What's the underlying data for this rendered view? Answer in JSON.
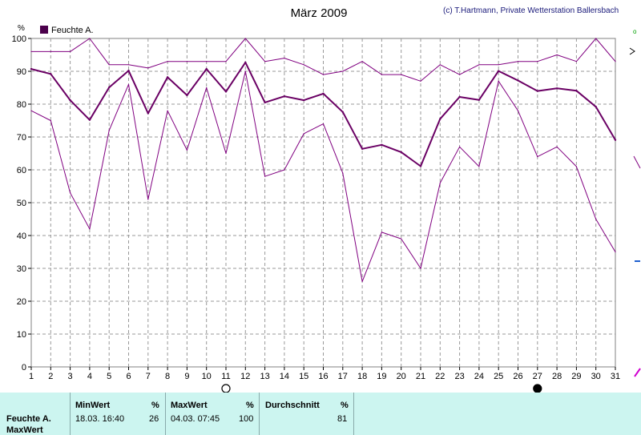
{
  "chart_data": {
    "type": "line",
    "title": "März 2009",
    "credit": "(c) T.Hartmann, Private Wetterstation Ballersbach",
    "ylabel": "%",
    "ylim": [
      0,
      100
    ],
    "yticks": [
      0,
      10,
      20,
      30,
      40,
      50,
      60,
      70,
      80,
      90,
      100
    ],
    "x": [
      1,
      2,
      3,
      4,
      5,
      6,
      7,
      8,
      9,
      10,
      11,
      12,
      13,
      14,
      15,
      16,
      17,
      18,
      19,
      20,
      21,
      22,
      23,
      24,
      25,
      26,
      27,
      28,
      29,
      30,
      31
    ],
    "legend": "Feuchte A.",
    "legend_position": "top-left",
    "grid": true,
    "series": [
      {
        "role": "max",
        "color": "#800080",
        "values": [
          96,
          96,
          96,
          100,
          92,
          92,
          91,
          93,
          93,
          93,
          93,
          100,
          93,
          94,
          92,
          89,
          90,
          93,
          89,
          89,
          87,
          92,
          89,
          92,
          92,
          93,
          93,
          95,
          93,
          100,
          93
        ]
      },
      {
        "role": "mean",
        "color": "#6a0064",
        "values": [
          90.7,
          89.2,
          81.2,
          75.2,
          85.1,
          90.2,
          77.2,
          88.2,
          82.7,
          90.7,
          83.8,
          92.7,
          80.5,
          82.4,
          81.2,
          83.2,
          77.6,
          66.4,
          67.6,
          65.4,
          61.1,
          75.5,
          82.2,
          81.3,
          90.1,
          87.2,
          84,
          84.8,
          84.1,
          79.2,
          69.1
        ]
      },
      {
        "role": "min",
        "color": "#800080",
        "values": [
          78,
          75,
          53,
          42,
          72,
          86,
          51,
          78,
          66,
          85,
          65,
          90,
          58,
          60,
          71,
          74,
          59,
          26,
          41,
          39,
          30,
          56,
          67,
          61,
          87,
          78,
          64,
          67,
          61,
          45,
          35
        ]
      }
    ],
    "moon_phases": [
      {
        "day": 11,
        "phase": "full-moon-icon"
      },
      {
        "day": 27,
        "phase": "new-moon-icon"
      }
    ]
  },
  "summary": {
    "row_label": "Feuchte A.",
    "row_label2": "MaxWert",
    "min_header": "MinWert",
    "max_header": "MaxWert",
    "avg_header": "Durchschnitt",
    "unit": "%",
    "min_datetime": "18.03.  16:40",
    "min_value": "26",
    "max_datetime": "04.03.  07:45",
    "max_value": "100",
    "avg_value": "81"
  }
}
